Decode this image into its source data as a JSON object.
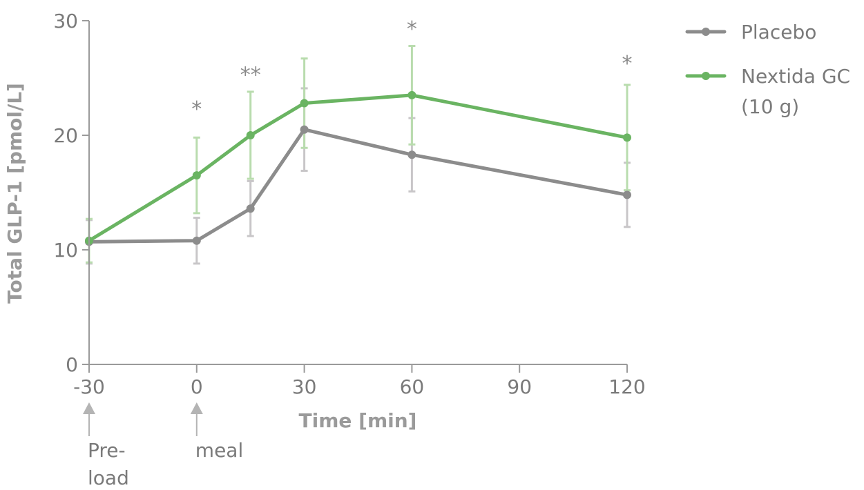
{
  "chart_data": {
    "type": "line",
    "title": "",
    "xlabel": "Time [min]",
    "ylabel": "Total GLP-1 [pmol/L]",
    "xlim": [
      -30,
      120
    ],
    "ylim": [
      0,
      30
    ],
    "xticks": [
      -30,
      0,
      30,
      60,
      90,
      120
    ],
    "xtick_labels": [
      "-30",
      "0",
      "30",
      "60",
      "90",
      "120"
    ],
    "yticks": [
      0,
      10,
      20,
      30
    ],
    "ytick_labels": [
      "0",
      "10",
      "20",
      "30"
    ],
    "grid": false,
    "legend_position": "top-right",
    "series": [
      {
        "name": "Placebo",
        "color": "#8c8c8c",
        "error_color": "#c8c6c8",
        "x": [
          -30,
          0,
          15,
          30,
          60,
          120
        ],
        "y": [
          10.7,
          10.8,
          13.6,
          20.5,
          18.3,
          14.8
        ],
        "err_low": [
          1.9,
          2.0,
          2.4,
          3.6,
          3.2,
          2.8
        ],
        "err_high": [
          1.9,
          2.0,
          2.4,
          3.6,
          3.2,
          2.8
        ]
      },
      {
        "name": "Nextida GC (10 g)",
        "legend_lines": [
          "Nextida GC",
          "(10 g)"
        ],
        "color": "#6ab462",
        "error_color": "#b9dcae",
        "x": [
          -30,
          0,
          15,
          30,
          60,
          120
        ],
        "y": [
          10.8,
          16.5,
          20.0,
          22.8,
          23.5,
          19.8
        ],
        "err_low": [
          1.9,
          3.3,
          3.8,
          3.9,
          4.3,
          4.6
        ],
        "err_high": [
          1.9,
          3.3,
          3.8,
          3.9,
          4.3,
          4.6
        ]
      }
    ],
    "significance": [
      {
        "x": 0,
        "label": "*",
        "y": 23
      },
      {
        "x": 15,
        "label": "**",
        "y": 26
      },
      {
        "x": 60,
        "label": "*",
        "y": 30
      },
      {
        "x": 120,
        "label": "*",
        "y": 27
      }
    ],
    "markers": [
      {
        "x": -30,
        "label_lines": [
          "Pre-",
          "load"
        ]
      },
      {
        "x": 0,
        "label_lines": [
          "meal"
        ]
      }
    ]
  }
}
